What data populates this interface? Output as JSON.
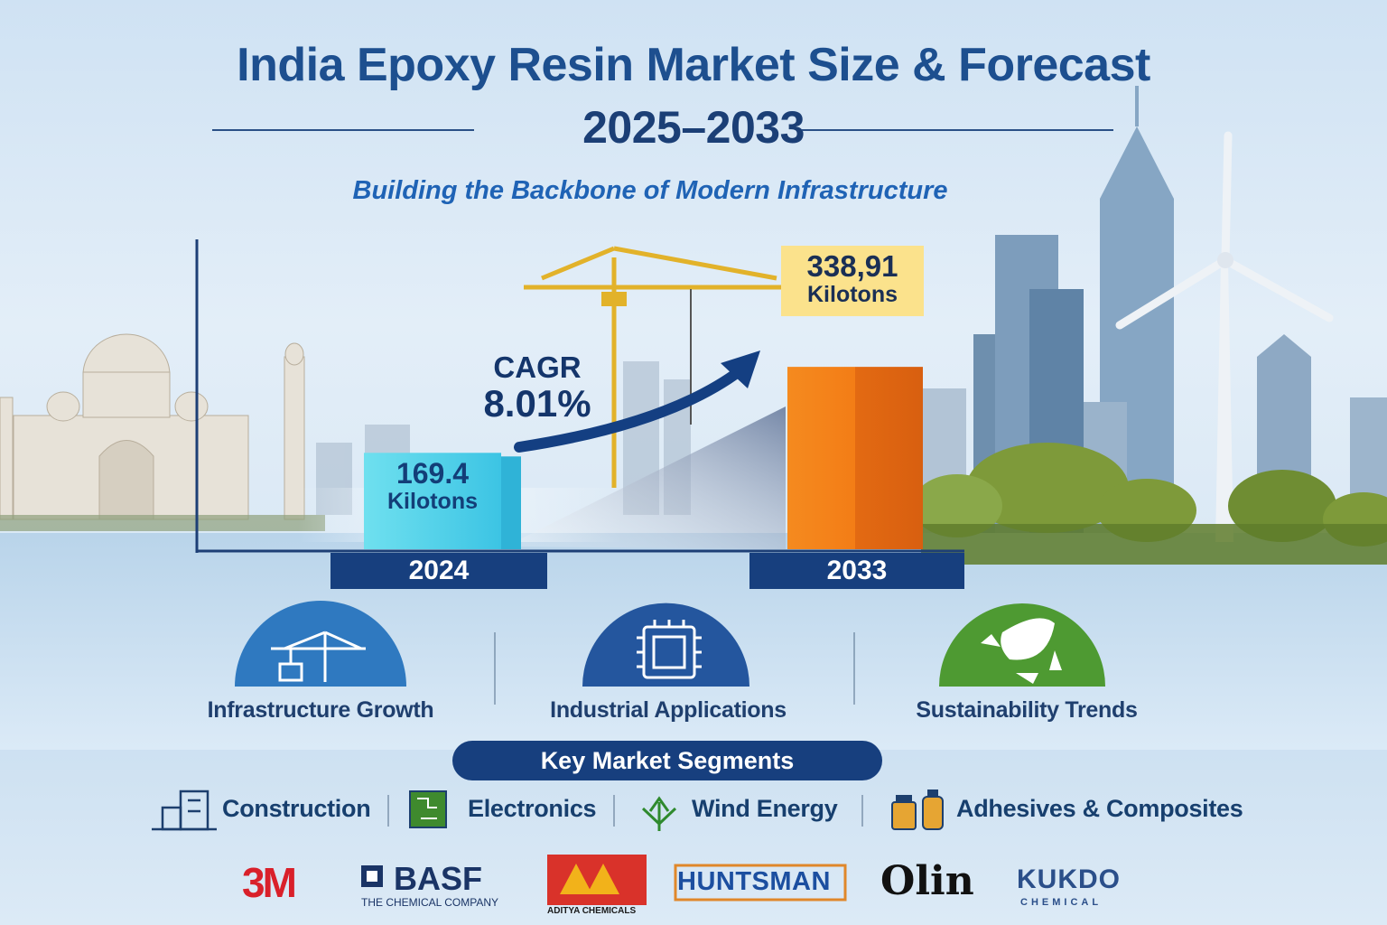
{
  "header": {
    "title": "India Epoxy Resin Market Size & Forecast",
    "period": "2025–2033",
    "subtitle": "Building the Backbone of Modern Infrastructure"
  },
  "chart_data": {
    "type": "bar",
    "title": "India Epoxy Resin Market Size & Forecast",
    "categories": [
      "2024",
      "2033"
    ],
    "values": [
      169.4,
      338.91
    ],
    "value_labels": [
      "169.4",
      "338,91"
    ],
    "unit": "Kilotons",
    "ylim": [
      0,
      400
    ],
    "annotation": {
      "label": "CAGR",
      "value": "8.01%"
    }
  },
  "drivers": [
    {
      "label": "Infrastructure Growth",
      "icon": "crane-icon",
      "color": "#2f79c0"
    },
    {
      "label": "Industrial Applications",
      "icon": "chip-icon",
      "color": "#24569e"
    },
    {
      "label": "Sustainability Trends",
      "icon": "recycle-leaf-icon",
      "color": "#4e9a32"
    }
  ],
  "segments": {
    "title": "Key Market Segments",
    "items": [
      {
        "label": "Construction",
        "icon": "building-icon"
      },
      {
        "label": "Electronics",
        "icon": "circuit-board-icon"
      },
      {
        "label": "Wind Energy",
        "icon": "arrows-up-icon"
      },
      {
        "label": "Adhesives & Composites",
        "icon": "bottles-icon"
      }
    ]
  },
  "companies": [
    {
      "name": "3M",
      "color": "#d9202a"
    },
    {
      "name": "BASF",
      "tagline": "THE CHEMICAL COMPANY",
      "color": "#1a3466"
    },
    {
      "name": "ADITYA CHEMICALS",
      "color": "#d9322a"
    },
    {
      "name": "HUNTSMAN",
      "color": "#1c4fa0"
    },
    {
      "name": "Olin",
      "color": "#111111"
    },
    {
      "name": "KUKDO",
      "tagline": "CHEMICAL",
      "color": "#2b4f8a"
    }
  ]
}
